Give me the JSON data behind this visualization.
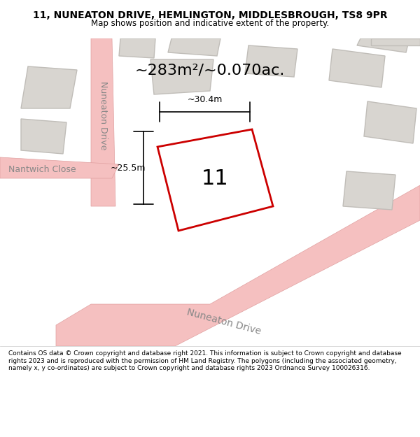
{
  "title_line1": "11, NUNEATON DRIVE, HEMLINGTON, MIDDLESBROUGH, TS8 9PR",
  "title_line2": "Map shows position and indicative extent of the property.",
  "area_text": "~283m²/~0.070ac.",
  "label_number": "11",
  "dim_vertical": "~25.5m",
  "dim_horizontal": "~30.4m",
  "footer_text": "Contains OS data © Crown copyright and database right 2021. This information is subject to Crown copyright and database rights 2023 and is reproduced with the permission of HM Land Registry. The polygons (including the associated geometry, namely x, y co-ordinates) are subject to Crown copyright and database rights 2023 Ordnance Survey 100026316.",
  "bg_color": "#f0eeec",
  "map_bg": "#e8e6e2",
  "road_color": "#f5c0c0",
  "road_outline": "#e8a8a8",
  "building_color": "#d8d5d0",
  "building_outline": "#c0bdb8",
  "highlight_color": "#cc0000",
  "highlight_fill": "white",
  "footer_bg": "white",
  "title_bg": "white"
}
